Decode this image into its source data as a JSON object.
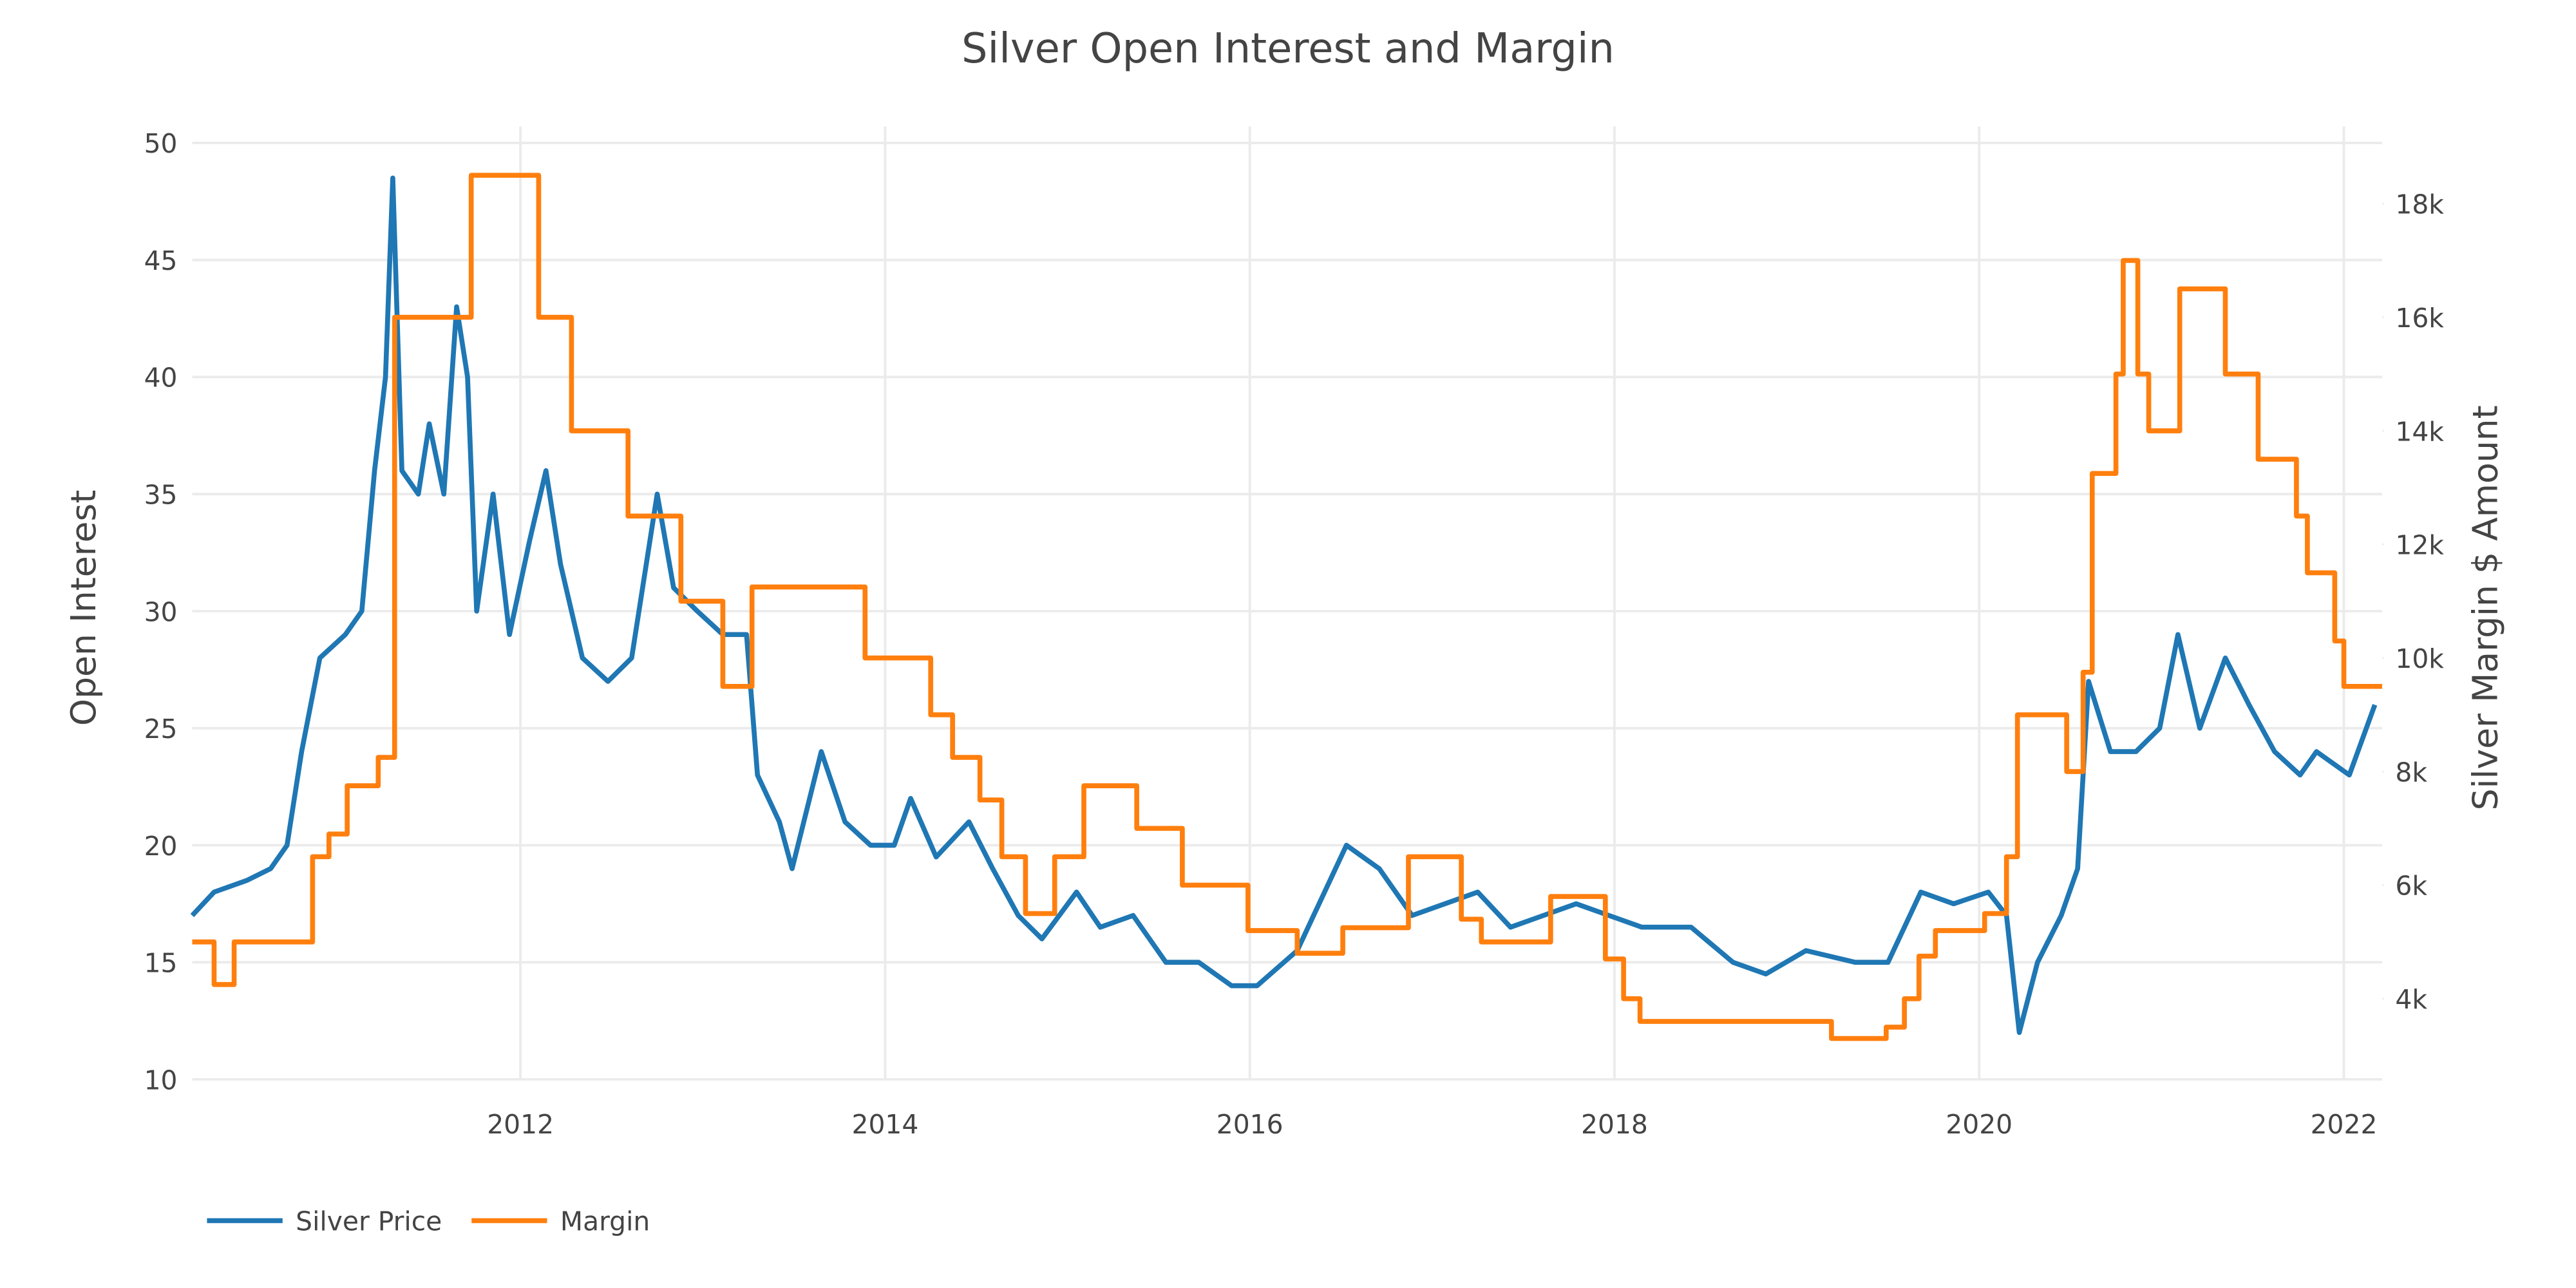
{
  "chart_data": {
    "type": "line",
    "title": "Silver Open Interest and Margin",
    "y_label": "Open Interest",
    "y2_label": "Silver Margin $ Amount",
    "xlim": [
      2010.2,
      2022.21
    ],
    "xticks": [
      2012,
      2014,
      2016,
      2018,
      2020,
      2022
    ],
    "ylim": [
      10,
      50
    ],
    "yticks": [
      10,
      15,
      20,
      25,
      30,
      35,
      40,
      45,
      50
    ],
    "y2lim": [
      2580,
      19070
    ],
    "y2ticks": [
      {
        "value": 4000,
        "label": "4k"
      },
      {
        "value": 6000,
        "label": "6k"
      },
      {
        "value": 8000,
        "label": "8k"
      },
      {
        "value": 10000,
        "label": "10k"
      },
      {
        "value": 12000,
        "label": "12k"
      },
      {
        "value": 14000,
        "label": "14k"
      },
      {
        "value": 16000,
        "label": "16k"
      },
      {
        "value": 18000,
        "label": "18k"
      }
    ],
    "grid": true,
    "legend": "bottom-left",
    "series": [
      {
        "name": "Silver Price",
        "color": "#1f77b4",
        "x": [
          2010.2,
          2010.32,
          2010.5,
          2010.63,
          2010.72,
          2010.8,
          2010.9,
          2011.04,
          2011.13,
          2011.2,
          2011.26,
          2011.3,
          2011.35,
          2011.44,
          2011.5,
          2011.58,
          2011.65,
          2011.71,
          2011.76,
          2011.85,
          2011.94,
          2012.05,
          2012.14,
          2012.22,
          2012.34,
          2012.48,
          2012.61,
          2012.75,
          2012.84,
          2012.97,
          2013.11,
          2013.24,
          2013.3,
          2013.42,
          2013.49,
          2013.65,
          2013.78,
          2013.92,
          2014.05,
          2014.14,
          2014.28,
          2014.46,
          2014.59,
          2014.73,
          2014.86,
          2015.05,
          2015.18,
          2015.36,
          2015.54,
          2015.72,
          2015.9,
          2016.04,
          2016.26,
          2016.35,
          2016.53,
          2016.71,
          2016.89,
          2017.07,
          2017.25,
          2017.43,
          2017.61,
          2017.79,
          2017.97,
          2018.15,
          2018.42,
          2018.65,
          2018.83,
          2019.05,
          2019.32,
          2019.5,
          2019.68,
          2019.86,
          2020.05,
          2020.15,
          2020.22,
          2020.32,
          2020.45,
          2020.54,
          2020.6,
          2020.72,
          2020.86,
          2020.99,
          2021.09,
          2021.21,
          2021.35,
          2021.48,
          2021.62,
          2021.76,
          2021.85,
          2022.03,
          2022.17
        ],
        "values": [
          17,
          18,
          18.5,
          19,
          20,
          24,
          28,
          29,
          30,
          36,
          40,
          48.5,
          36,
          35,
          38,
          35,
          43,
          40,
          30,
          35,
          29,
          33,
          36,
          32,
          28,
          27,
          28,
          35,
          31,
          30,
          29,
          29,
          23,
          21,
          19,
          24,
          21,
          20,
          20,
          22,
          19.5,
          21,
          19,
          17,
          16,
          18,
          16.5,
          17,
          15,
          15,
          14,
          14,
          15.5,
          17,
          20,
          19,
          17,
          17.5,
          18,
          16.5,
          17,
          17.5,
          17,
          16.5,
          16.5,
          15,
          14.5,
          15.5,
          15,
          15,
          18,
          17.5,
          18,
          17,
          12,
          15,
          17,
          19,
          27,
          24,
          24,
          25,
          29,
          25,
          28,
          26,
          24,
          23,
          24,
          23,
          26
        ]
      },
      {
        "name": "Margin",
        "color": "#ff7f0e",
        "axis": "y2",
        "step": "hv",
        "x": [
          2010.2,
          2010.32,
          2010.43,
          2010.86,
          2010.95,
          2011.05,
          2011.22,
          2011.31,
          2011.73,
          2012.1,
          2012.28,
          2012.59,
          2012.88,
          2013.11,
          2013.27,
          2013.89,
          2014.25,
          2014.37,
          2014.52,
          2014.64,
          2014.77,
          2014.93,
          2015.09,
          2015.38,
          2015.63,
          2015.99,
          2016.26,
          2016.51,
          2016.87,
          2017.16,
          2017.27,
          2017.65,
          2017.95,
          2018.05,
          2018.14,
          2019.19,
          2019.49,
          2019.59,
          2019.67,
          2019.76,
          2020.03,
          2020.15,
          2020.21,
          2020.48,
          2020.57,
          2020.62,
          2020.75,
          2020.79,
          2020.87,
          2020.93,
          2021.1,
          2021.35,
          2021.53,
          2021.74,
          2021.8,
          2021.95,
          2022.0,
          2022.21
        ],
        "values": [
          5000,
          4250,
          5000,
          6500,
          6900,
          7750,
          8250,
          16000,
          18500,
          16000,
          14000,
          12500,
          11000,
          9500,
          11250,
          10000,
          9000,
          8250,
          7500,
          6500,
          5500,
          6500,
          7750,
          7000,
          6000,
          5200,
          4800,
          5250,
          6500,
          5400,
          5000,
          5800,
          4700,
          4000,
          3600,
          3300,
          3500,
          4000,
          4750,
          5200,
          5500,
          6500,
          9000,
          8000,
          9750,
          13250,
          15000,
          17000,
          15000,
          14000,
          16500,
          15000,
          13500,
          12500,
          11500,
          10300,
          9500,
          9500
        ]
      }
    ]
  }
}
